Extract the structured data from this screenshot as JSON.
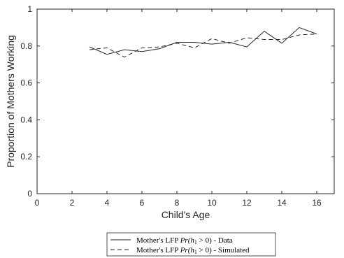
{
  "chart_data": {
    "type": "line",
    "xlabel": "Child's Age",
    "ylabel": "Proportion of Mothers Working",
    "xlim": [
      0,
      17
    ],
    "ylim": [
      0,
      1
    ],
    "xticks": [
      0,
      2,
      4,
      6,
      8,
      10,
      12,
      14,
      16
    ],
    "yticks": [
      0,
      0.2,
      0.4,
      0.6,
      0.8,
      1
    ],
    "x": [
      3,
      4,
      5,
      6,
      7,
      8,
      9,
      10,
      11,
      12,
      13,
      14,
      15,
      16
    ],
    "series": [
      {
        "name": "Mother's LFP Pr(h₁ > 0) - Data",
        "style": "solid",
        "values": [
          0.795,
          0.755,
          0.78,
          0.77,
          0.785,
          0.82,
          0.82,
          0.81,
          0.82,
          0.795,
          0.88,
          0.815,
          0.9,
          0.865
        ]
      },
      {
        "name": "Mother's LFP Pr(h₁ > 0) - Simulated",
        "style": "dashed",
        "values": [
          0.78,
          0.79,
          0.74,
          0.79,
          0.795,
          0.815,
          0.79,
          0.84,
          0.815,
          0.845,
          0.835,
          0.835,
          0.86,
          0.865
        ]
      }
    ],
    "colors": {
      "line": "#262626",
      "axis": "#262626"
    },
    "grid": false,
    "legend_position": "bottom-center",
    "legend_labels": [
      {
        "prefix": "Mother's LFP ",
        "math": "Pr(h",
        "sub": "1",
        "suffix": " > 0) - Data"
      },
      {
        "prefix": "Mother's LFP ",
        "math": "Pr(h",
        "sub": "1",
        "suffix": " > 0) - Simulated"
      }
    ]
  }
}
